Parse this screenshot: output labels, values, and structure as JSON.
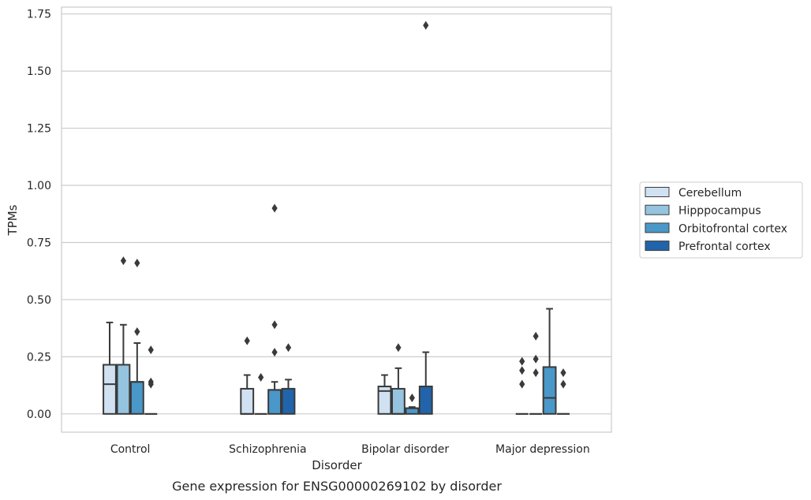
{
  "chart_data": {
    "type": "boxplot",
    "title": "Gene expression for ENSG00000269102 by disorder",
    "xlabel": "Disorder",
    "ylabel": "TPMs",
    "ylim": [
      -0.08,
      1.78
    ],
    "yticks": [
      "0.00",
      "0.25",
      "0.50",
      "0.75",
      "1.00",
      "1.25",
      "1.50",
      "1.75"
    ],
    "grid": "horizontal",
    "legend_position": "right",
    "categories": [
      "Control",
      "Schizophrenia",
      "Bipolar disorder",
      "Major depression"
    ],
    "series": [
      {
        "name": "Cerebellum",
        "color": "#d0e1f2",
        "boxes": [
          {
            "q1": 0.0,
            "median": 0.13,
            "q3": 0.215,
            "whisker_low": 0.0,
            "whisker_high": 0.4,
            "outliers": []
          },
          {
            "q1": 0.0,
            "median": 0.0,
            "q3": 0.11,
            "whisker_low": 0.0,
            "whisker_high": 0.17,
            "outliers": [
              0.32
            ]
          },
          {
            "q1": 0.0,
            "median": 0.1,
            "q3": 0.12,
            "whisker_low": 0.0,
            "whisker_high": 0.17,
            "outliers": []
          },
          {
            "q1": 0.0,
            "median": 0.0,
            "q3": 0.0,
            "whisker_low": 0.0,
            "whisker_high": 0.0,
            "outliers": [
              0.13,
              0.19,
              0.23
            ]
          }
        ]
      },
      {
        "name": "Hipppocampus",
        "color": "#94c4df",
        "boxes": [
          {
            "q1": 0.0,
            "median": 0.215,
            "q3": 0.215,
            "whisker_low": 0.0,
            "whisker_high": 0.39,
            "outliers": [
              0.67
            ]
          },
          {
            "q1": 0.0,
            "median": 0.0,
            "q3": 0.0,
            "whisker_low": 0.0,
            "whisker_high": 0.0,
            "outliers": [
              0.16
            ]
          },
          {
            "q1": 0.0,
            "median": 0.0,
            "q3": 0.11,
            "whisker_low": 0.0,
            "whisker_high": 0.2,
            "outliers": [
              0.29
            ]
          },
          {
            "q1": 0.0,
            "median": 0.0,
            "q3": 0.0,
            "whisker_low": 0.0,
            "whisker_high": 0.0,
            "outliers": [
              0.18,
              0.24,
              0.34
            ]
          }
        ]
      },
      {
        "name": "Orbitofrontal cortex",
        "color": "#4a98c9",
        "boxes": [
          {
            "q1": 0.0,
            "median": 0.14,
            "q3": 0.14,
            "whisker_low": 0.0,
            "whisker_high": 0.31,
            "outliers": [
              0.36,
              0.66
            ]
          },
          {
            "q1": 0.0,
            "median": 0.105,
            "q3": 0.105,
            "whisker_low": 0.0,
            "whisker_high": 0.14,
            "outliers": [
              0.27,
              0.39,
              0.9
            ]
          },
          {
            "q1": 0.0,
            "median": 0.025,
            "q3": 0.025,
            "whisker_low": 0.0,
            "whisker_high": 0.03,
            "outliers": [
              0.07
            ]
          },
          {
            "q1": 0.0,
            "median": 0.07,
            "q3": 0.205,
            "whisker_low": 0.0,
            "whisker_high": 0.46,
            "outliers": []
          }
        ]
      },
      {
        "name": "Prefrontal cortex",
        "color": "#2164ab",
        "boxes": [
          {
            "q1": 0.0,
            "median": 0.0,
            "q3": 0.0,
            "whisker_low": 0.0,
            "whisker_high": 0.0,
            "outliers": [
              0.13,
              0.14,
              0.28
            ]
          },
          {
            "q1": 0.0,
            "median": 0.11,
            "q3": 0.11,
            "whisker_low": 0.0,
            "whisker_high": 0.15,
            "outliers": [
              0.29
            ]
          },
          {
            "q1": 0.0,
            "median": 0.12,
            "q3": 0.12,
            "whisker_low": 0.0,
            "whisker_high": 0.27,
            "outliers": [
              1.7
            ]
          },
          {
            "q1": 0.0,
            "median": 0.0,
            "q3": 0.0,
            "whisker_low": 0.0,
            "whisker_high": 0.0,
            "outliers": [
              0.13,
              0.18
            ]
          }
        ]
      }
    ]
  }
}
